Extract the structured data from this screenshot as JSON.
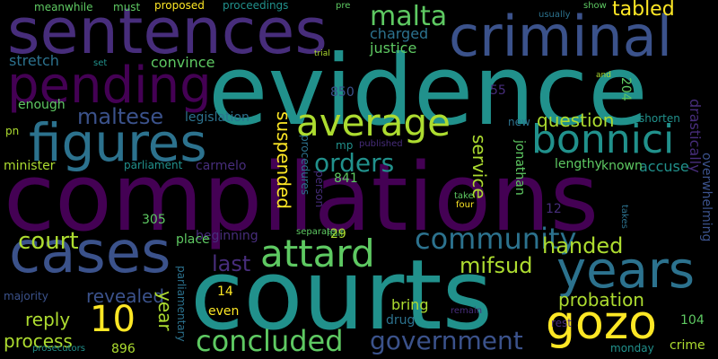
{
  "colors": {
    "background": "#000000",
    "palette": [
      "#440154",
      "#472d7b",
      "#3b528b",
      "#2c728e",
      "#21918c",
      "#28ae80",
      "#5ec962",
      "#addc30",
      "#fde725"
    ]
  },
  "words": {
    "compilations": "compilations",
    "courts": "courts",
    "evidence": "evidence",
    "sentences": "sentences",
    "criminal": "criminal",
    "pending": "pending",
    "figures": "figures",
    "cases": "cases",
    "gozo": "gozo",
    "years": "years",
    "attard": "attard",
    "average": "average",
    "bonnici": "bonnici",
    "community": "community",
    "concluded": "concluded",
    "government": "government",
    "orders": "orders",
    "malta": "malta",
    "maltese": "maltese",
    "ten": "10",
    "court": "court",
    "last": "last",
    "handed": "handed",
    "mifsud": "mifsud",
    "tabled": "tabled",
    "question": "question",
    "probation": "probation",
    "service": "service",
    "suspended": "suspended",
    "revealed": "revealed",
    "reply": "reply",
    "process": "process",
    "year": "year",
    "charged": "charged",
    "justice": "justice",
    "stretch": "stretch",
    "convince": "convince",
    "enough": "enough",
    "jonathan": "jonathan",
    "drastically": "drastically",
    "overwhelming": "overwhelming",
    "accuse": "accuse",
    "known": "known",
    "lengthy": "lengthy",
    "minister": "minister",
    "parliament": "parliament",
    "carmelo": "carmelo",
    "legislation": "legislation",
    "beginning": "beginning",
    "place": "place",
    "bring": "bring",
    "drug": "drug",
    "even": "even",
    "crime": "crime",
    "monday": "monday",
    "majority": "majority",
    "prosecutors": "prosecutors",
    "parliamentary": "parliamentary",
    "separate": "separate",
    "published": "published",
    "procedures": "procedures",
    "person": "person",
    "mp": "mp",
    "new": "new",
    "shorten": "shorten",
    "takes": "takes",
    "take": "take",
    "four": "four",
    "half": "half",
    "rest": "rest",
    "remain": "remain",
    "meanwhile": "meanwhile",
    "must": "must",
    "proposed": "proposed",
    "proceedings": "proceedings",
    "pre": "pre",
    "usually": "usually",
    "show": "show",
    "set": "set",
    "trial": "trial",
    "and": "and",
    "pn": "pn",
    "n55": "55",
    "n850": "850",
    "n841": "841",
    "n204": "204",
    "n305": "305",
    "n29": "29",
    "n12": "12",
    "n14": "14",
    "n104": "104",
    "n896": "896"
  }
}
